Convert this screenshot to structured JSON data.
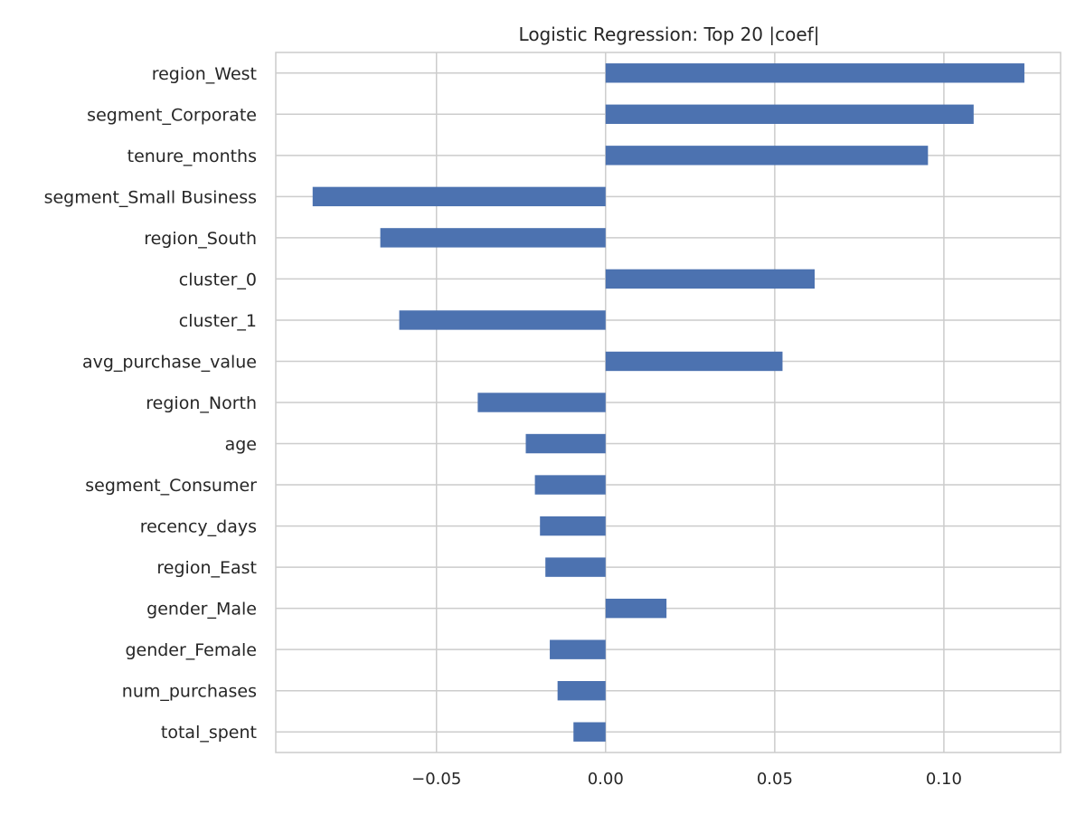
{
  "chart_data": {
    "type": "bar",
    "orientation": "horizontal",
    "title": "Logistic Regression: Top 20 |coef|",
    "xlabel": "",
    "ylabel": "",
    "xlim": [
      -0.0975,
      0.1345
    ],
    "xticks": [
      -0.05,
      0.0,
      0.05,
      0.1
    ],
    "xtick_labels": [
      "−0.05",
      "0.00",
      "0.05",
      "0.10"
    ],
    "grid": true,
    "bar_color": "#4c72b0",
    "grid_color": "#cccccc",
    "categories": [
      "region_West",
      "segment_Corporate",
      "tenure_months",
      "segment_Small Business",
      "region_South",
      "cluster_0",
      "cluster_1",
      "avg_purchase_value",
      "region_North",
      "age",
      "segment_Consumer",
      "recency_days",
      "region_East",
      "gender_Male",
      "gender_Female",
      "num_purchases",
      "total_spent"
    ],
    "values": [
      0.1238,
      0.1088,
      0.0953,
      -0.0866,
      -0.0666,
      0.0618,
      -0.061,
      0.0523,
      -0.0378,
      -0.0236,
      -0.0209,
      -0.0194,
      -0.0178,
      0.018,
      -0.0165,
      -0.0142,
      -0.0095
    ]
  }
}
